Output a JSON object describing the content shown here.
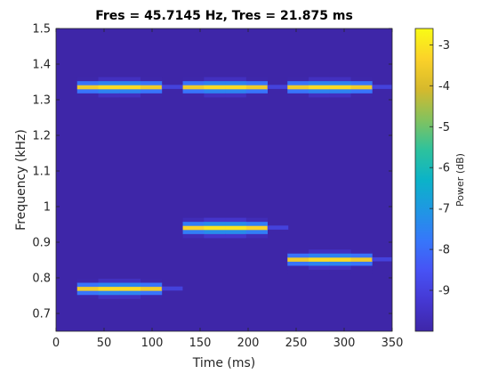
{
  "chart_data": {
    "type": "heatmap",
    "title": "Fres = 45.7145 Hz, Tres = 21.875 ms",
    "xlabel": "Time (ms)",
    "ylabel": "Frequency (kHz)",
    "colorbar_label": "Power (dB)",
    "xlim": [
      0,
      350
    ],
    "ylim": [
      0.65,
      1.5
    ],
    "xticks": [
      0,
      50,
      100,
      150,
      200,
      250,
      300,
      350
    ],
    "yticks": [
      0.7,
      0.8,
      0.9,
      1,
      1.1,
      1.2,
      1.3,
      1.4,
      1.5
    ],
    "color_range_db": [
      -10,
      -2.6
    ],
    "colorbar_ticks": [
      -3,
      -4,
      -5,
      -6,
      -7,
      -8,
      -9
    ],
    "colormap": "parula",
    "background_db": -10,
    "grid": false,
    "tones": [
      {
        "t_start": 22,
        "t_end": 110,
        "freq_khz": 1.336,
        "peak_db": -3.2
      },
      {
        "t_start": 22,
        "t_end": 110,
        "freq_khz": 0.77,
        "peak_db": -3.2
      },
      {
        "t_start": 132,
        "t_end": 220,
        "freq_khz": 1.336,
        "peak_db": -3.2
      },
      {
        "t_start": 132,
        "t_end": 220,
        "freq_khz": 0.941,
        "peak_db": -3.0
      },
      {
        "t_start": 241,
        "t_end": 329,
        "freq_khz": 1.336,
        "peak_db": -3.2
      },
      {
        "t_start": 241,
        "t_end": 329,
        "freq_khz": 0.852,
        "peak_db": -3.2
      }
    ]
  }
}
